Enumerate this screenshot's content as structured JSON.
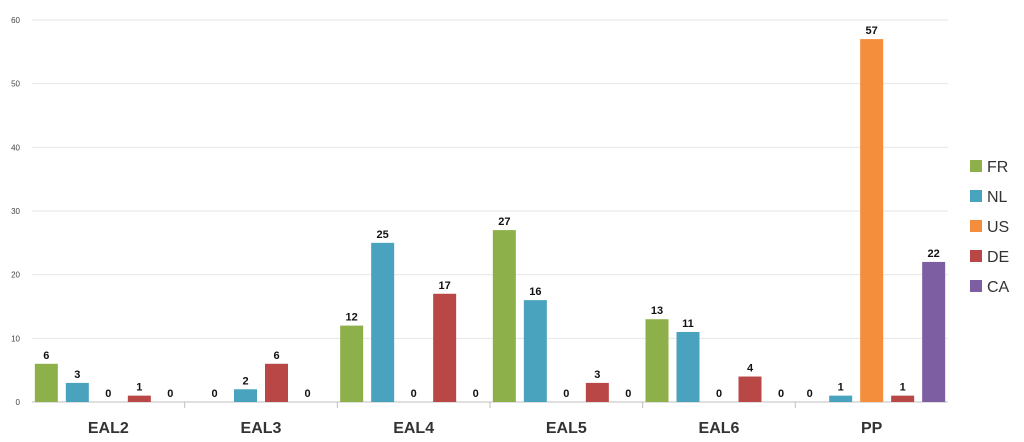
{
  "chart_data": {
    "type": "bar",
    "title": "",
    "xlabel": "",
    "ylabel": "",
    "ylim": [
      0,
      60
    ],
    "yticks": [
      0,
      10,
      20,
      30,
      40,
      50,
      60
    ],
    "grid": true,
    "legend_position": "right",
    "categories": [
      "EAL2",
      "EAL3",
      "EAL4",
      "EAL5",
      "EAL6",
      "PP"
    ],
    "series": [
      {
        "name": "FR",
        "color": "#8db04a",
        "values": [
          6,
          0,
          12,
          27,
          13,
          0
        ]
      },
      {
        "name": "NL",
        "color": "#4aa3be",
        "values": [
          3,
          2,
          25,
          16,
          11,
          1
        ]
      },
      {
        "name": "US",
        "color": "#f58e3c",
        "values": [
          0,
          0,
          0,
          0,
          0,
          57
        ]
      },
      {
        "name": "DE",
        "color": "#b94746",
        "values": [
          1,
          6,
          17,
          3,
          4,
          1
        ]
      },
      {
        "name": "CA",
        "color": "#7d5ea3",
        "values": [
          0,
          0,
          0,
          0,
          0,
          22
        ]
      }
    ],
    "series_per_category": [
      [
        "FR",
        "NL",
        "US",
        "DE",
        "CA"
      ],
      [
        "FR",
        "NL",
        "DE",
        "CA"
      ],
      [
        "FR",
        "NL",
        "US",
        "DE",
        "CA"
      ],
      [
        "FR",
        "NL",
        "US",
        "DE",
        "CA"
      ],
      [
        "FR",
        "NL",
        "US",
        "DE",
        "CA"
      ],
      [
        "FR",
        "NL",
        "US",
        "DE",
        "CA"
      ]
    ]
  }
}
